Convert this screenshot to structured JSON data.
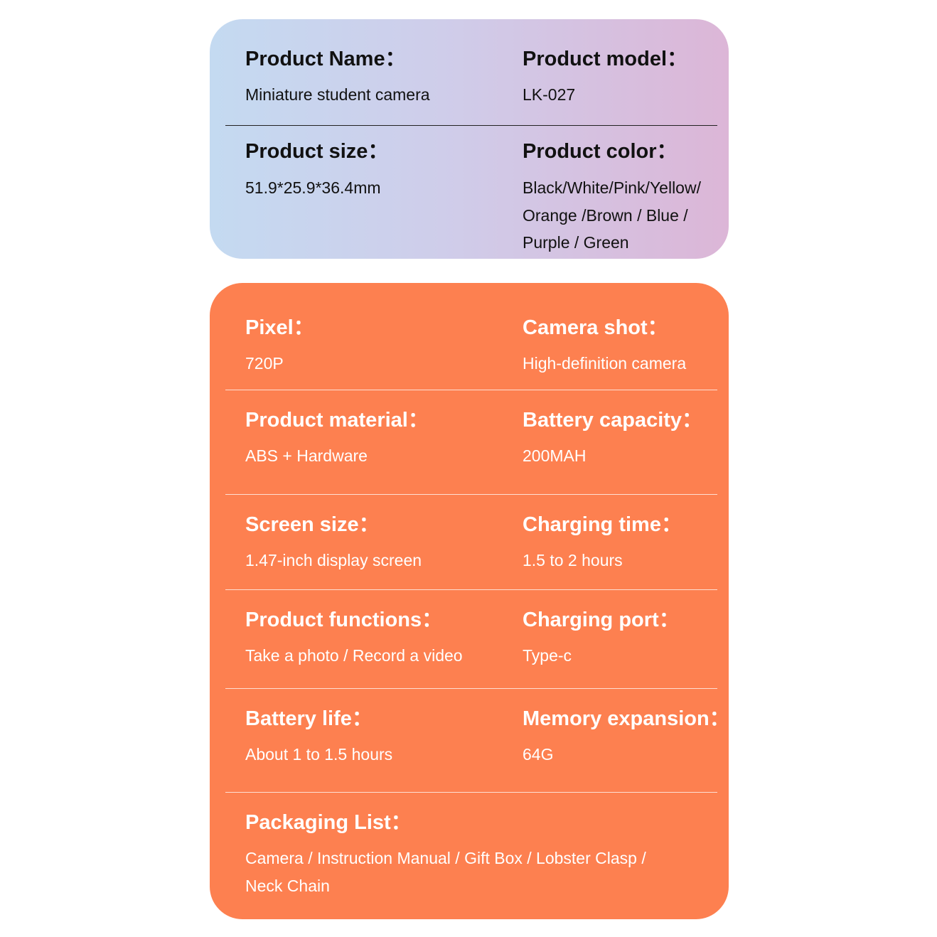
{
  "colors": {
    "top_gradient_start": "#c4daf1",
    "top_gradient_end": "#dcb6d7",
    "orange": "#fd8050"
  },
  "basic": [
    {
      "title": "Product Name：",
      "value": "Miniature student camera"
    },
    {
      "title": "Product model：",
      "value": "LK-027"
    },
    {
      "title": "Product size：",
      "value": "51.9*25.9*36.4mm"
    },
    {
      "title": "Product color：",
      "value_lines": [
        "Black/White/Pink/Yellow/",
        "Orange /Brown / Blue /",
        "Purple / Green"
      ]
    }
  ],
  "specs": [
    {
      "title": "Pixel：",
      "value": "720P"
    },
    {
      "title": "Camera shot：",
      "value": "High-definition camera"
    },
    {
      "title": "Product material：",
      "value": "ABS + Hardware"
    },
    {
      "title": "Battery capacity：",
      "value": "200MAH"
    },
    {
      "title": "Screen size：",
      "value": "1.47-inch display screen"
    },
    {
      "title": "Charging time：",
      "value": "1.5 to 2 hours"
    },
    {
      "title": "Product functions：",
      "value": "Take a photo / Record a video"
    },
    {
      "title": "Charging port：",
      "value": "Type-c"
    },
    {
      "title": "Battery life：",
      "value": "About 1 to 1.5 hours"
    },
    {
      "title": "Memory expansion：",
      "value": "64G"
    }
  ],
  "packaging": {
    "title": "Packaging List：",
    "value_lines": [
      "Camera / Instruction Manual / Gift Box / Lobster Clasp /",
      "Neck Chain"
    ]
  }
}
